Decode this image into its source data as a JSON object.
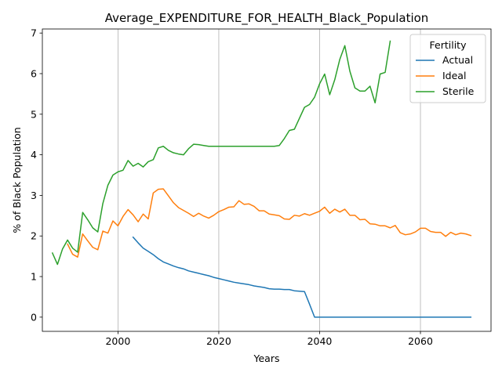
{
  "chart_data": {
    "type": "line",
    "title": "Average_EXPENDITURE_FOR_HEALTH_Black_Population",
    "xlabel": "Years",
    "ylabel": "% of Black Population",
    "xlim": [
      1985,
      2074
    ],
    "ylim": [
      -0.35,
      7.1
    ],
    "xticks": [
      2000,
      2020,
      2040,
      2060
    ],
    "yticks": [
      0,
      1,
      2,
      3,
      4,
      5,
      6,
      7
    ],
    "grid": "x-only",
    "legend": {
      "title": "Fertility",
      "placement": "top-right"
    },
    "series": [
      {
        "name": "Actual",
        "color": "#1f77b4",
        "x": [
          2003,
          2004,
          2005,
          2006,
          2007,
          2008,
          2009,
          2010,
          2011,
          2012,
          2013,
          2014,
          2015,
          2016,
          2017,
          2018,
          2019,
          2020,
          2021,
          2022,
          2023,
          2024,
          2025,
          2026,
          2027,
          2028,
          2029,
          2030,
          2031,
          2032,
          2033,
          2034,
          2035,
          2036,
          2037,
          2038,
          2039,
          2040,
          2045,
          2050,
          2055,
          2060,
          2065,
          2070
        ],
        "values": [
          1.97,
          1.83,
          1.7,
          1.62,
          1.54,
          1.44,
          1.36,
          1.31,
          1.26,
          1.22,
          1.19,
          1.14,
          1.11,
          1.08,
          1.05,
          1.02,
          0.98,
          0.95,
          0.92,
          0.89,
          0.86,
          0.84,
          0.82,
          0.8,
          0.77,
          0.75,
          0.73,
          0.7,
          0.69,
          0.69,
          0.68,
          0.68,
          0.65,
          0.64,
          0.63,
          0.32,
          0.0,
          0.0,
          0.0,
          0.0,
          0.0,
          0.0,
          0.0,
          0.0
        ]
      },
      {
        "name": "Ideal",
        "color": "#ff7f0e",
        "x": [
          1990,
          1991,
          1992,
          1993,
          1994,
          1995,
          1996,
          1997,
          1998,
          1999,
          2000,
          2001,
          2002,
          2003,
          2004,
          2005,
          2006,
          2007,
          2008,
          2009,
          2010,
          2011,
          2012,
          2013,
          2014,
          2015,
          2016,
          2017,
          2018,
          2019,
          2020,
          2021,
          2022,
          2023,
          2024,
          2025,
          2026,
          2027,
          2028,
          2029,
          2030,
          2031,
          2032,
          2033,
          2034,
          2035,
          2036,
          2037,
          2038,
          2039,
          2040,
          2041,
          2042,
          2043,
          2044,
          2045,
          2046,
          2047,
          2048,
          2049,
          2050,
          2051,
          2052,
          2053,
          2054,
          2055,
          2056,
          2057,
          2058,
          2059,
          2060,
          2061,
          2062,
          2063,
          2064,
          2065,
          2066,
          2067,
          2068,
          2069,
          2070
        ],
        "values": [
          1.8,
          1.55,
          1.48,
          2.05,
          1.88,
          1.72,
          1.66,
          2.12,
          2.07,
          2.37,
          2.25,
          2.48,
          2.65,
          2.52,
          2.35,
          2.54,
          2.42,
          3.06,
          3.15,
          3.16,
          2.99,
          2.82,
          2.7,
          2.63,
          2.56,
          2.48,
          2.56,
          2.49,
          2.44,
          2.51,
          2.6,
          2.65,
          2.71,
          2.72,
          2.87,
          2.78,
          2.79,
          2.73,
          2.62,
          2.62,
          2.54,
          2.52,
          2.5,
          2.42,
          2.41,
          2.51,
          2.49,
          2.55,
          2.51,
          2.56,
          2.61,
          2.71,
          2.56,
          2.66,
          2.59,
          2.66,
          2.51,
          2.51,
          2.4,
          2.41,
          2.3,
          2.29,
          2.25,
          2.25,
          2.2,
          2.26,
          2.08,
          2.03,
          2.05,
          2.1,
          2.19,
          2.19,
          2.11,
          2.09,
          2.09,
          1.99,
          2.09,
          2.03,
          2.07,
          2.05,
          2.01
        ]
      },
      {
        "name": "Sterile",
        "color": "#2ca02c",
        "x": [
          1987,
          1988,
          1989,
          1990,
          1991,
          1992,
          1993,
          1994,
          1995,
          1996,
          1997,
          1998,
          1999,
          2000,
          2001,
          2002,
          2003,
          2004,
          2005,
          2006,
          2007,
          2008,
          2009,
          2010,
          2011,
          2012,
          2013,
          2014,
          2015,
          2016,
          2017,
          2018,
          2019,
          2020,
          2025,
          2030,
          2031,
          2032,
          2033,
          2034,
          2035,
          2036,
          2037,
          2038,
          2039,
          2040,
          2041,
          2042,
          2043,
          2044,
          2045,
          2046,
          2047,
          2048,
          2049,
          2050,
          2051,
          2052,
          2053,
          2054
        ],
        "values": [
          1.58,
          1.3,
          1.68,
          1.9,
          1.7,
          1.6,
          2.58,
          2.4,
          2.2,
          2.1,
          2.8,
          3.25,
          3.5,
          3.58,
          3.62,
          3.86,
          3.72,
          3.79,
          3.7,
          3.83,
          3.88,
          4.17,
          4.21,
          4.11,
          4.05,
          4.02,
          4.0,
          4.15,
          4.26,
          4.25,
          4.23,
          4.21,
          4.21,
          4.21,
          4.21,
          4.21,
          4.21,
          4.23,
          4.4,
          4.6,
          4.63,
          4.9,
          5.17,
          5.24,
          5.42,
          5.75,
          5.99,
          5.48,
          5.85,
          6.35,
          6.69,
          6.06,
          5.65,
          5.57,
          5.57,
          5.69,
          5.28,
          5.99,
          6.03,
          6.8
        ]
      }
    ]
  }
}
